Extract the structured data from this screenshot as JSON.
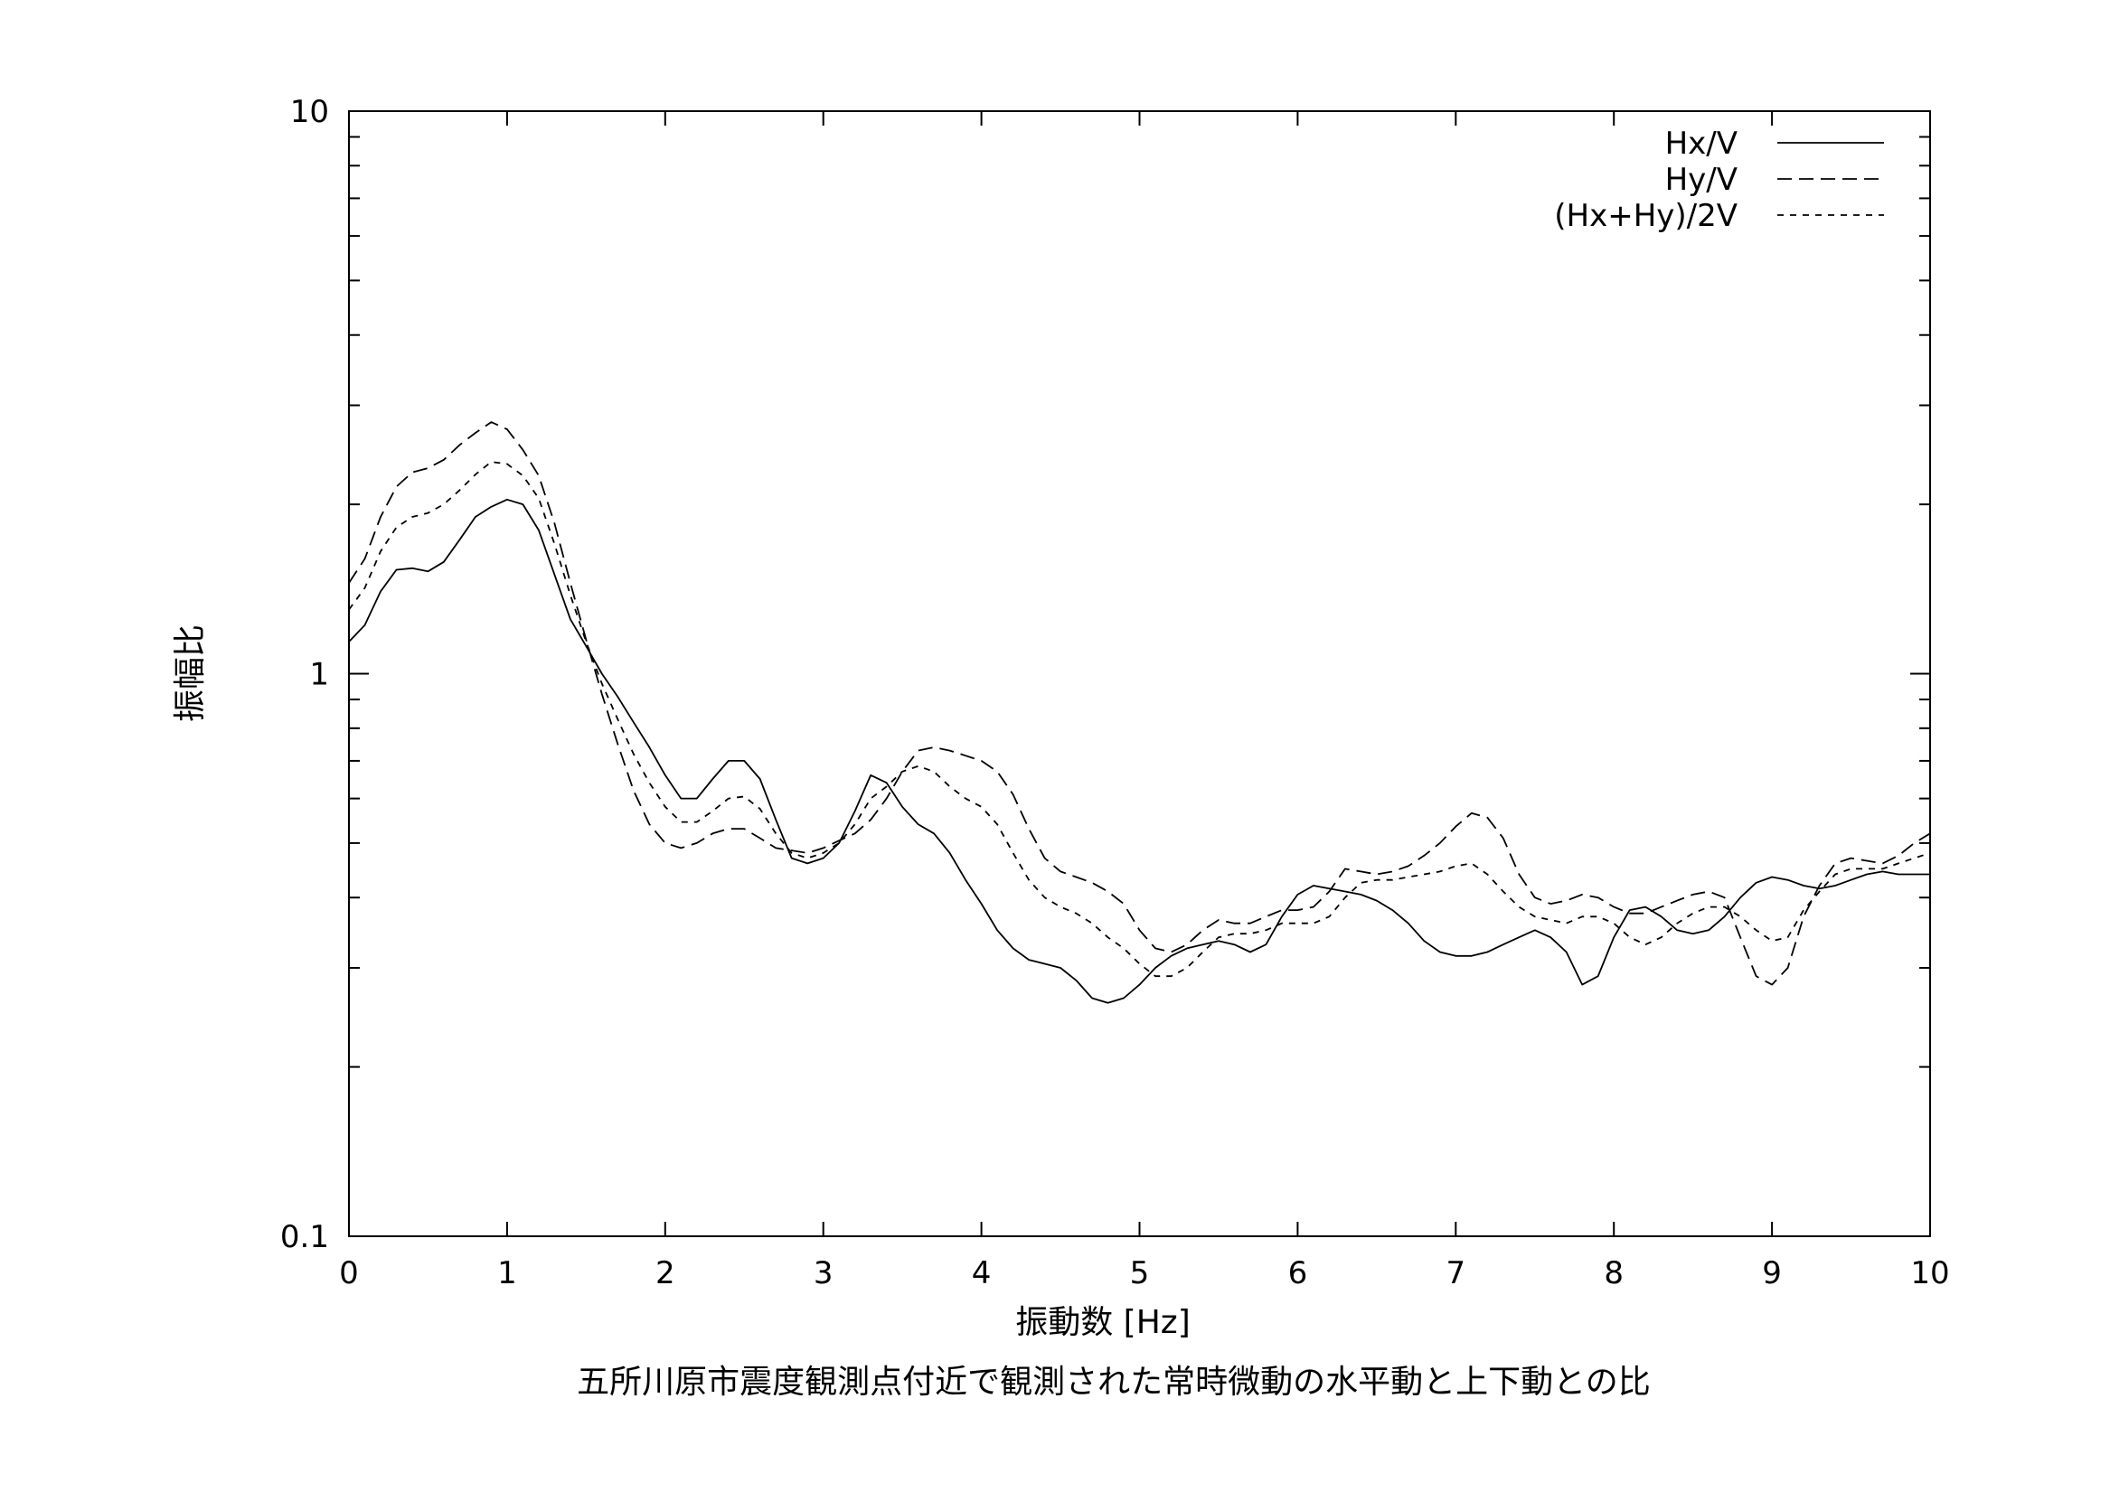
{
  "chart_data": {
    "type": "line",
    "title": "五所川原市震度観測点付近で観測された常時微動の水平動と上下動との比",
    "xlabel": "振動数 [Hz]",
    "ylabel": "振幅比",
    "xlim": [
      0,
      10
    ],
    "ylim": [
      0.1,
      10
    ],
    "yscale": "log",
    "grid": false,
    "legend_position": "top-right",
    "x_ticks": [
      "0",
      "1",
      "2",
      "3",
      "4",
      "5",
      "6",
      "7",
      "8",
      "9",
      "10"
    ],
    "y_ticks": [
      "0.1",
      "1",
      "10"
    ],
    "series": [
      {
        "name": "Hx/V",
        "style": "solid",
        "x": [
          0,
          0.1,
          0.2,
          0.3,
          0.4,
          0.5,
          0.6,
          0.7,
          0.8,
          0.9,
          1.0,
          1.1,
          1.2,
          1.3,
          1.4,
          1.5,
          1.6,
          1.7,
          1.8,
          1.9,
          2.0,
          2.1,
          2.2,
          2.3,
          2.4,
          2.5,
          2.6,
          2.7,
          2.8,
          2.9,
          3.0,
          3.1,
          3.2,
          3.3,
          3.4,
          3.5,
          3.6,
          3.7,
          3.8,
          3.9,
          4.0,
          4.1,
          4.2,
          4.3,
          4.4,
          4.5,
          4.6,
          4.7,
          4.8,
          4.9,
          5.0,
          5.1,
          5.2,
          5.3,
          5.4,
          5.5,
          5.6,
          5.7,
          5.8,
          5.9,
          6.0,
          6.1,
          6.2,
          6.3,
          6.4,
          6.5,
          6.6,
          6.7,
          6.8,
          6.9,
          7.0,
          7.1,
          7.2,
          7.3,
          7.4,
          7.5,
          7.6,
          7.7,
          7.8,
          7.9,
          8.0,
          8.1,
          8.2,
          8.3,
          8.4,
          8.5,
          8.6,
          8.7,
          8.8,
          8.9,
          9.0,
          9.1,
          9.2,
          9.3,
          9.4,
          9.5,
          9.6,
          9.7,
          9.8,
          9.9,
          10.0
        ],
        "values": [
          1.14,
          1.22,
          1.4,
          1.53,
          1.54,
          1.52,
          1.58,
          1.73,
          1.9,
          1.98,
          2.04,
          2.0,
          1.8,
          1.5,
          1.25,
          1.12,
          1.0,
          0.91,
          0.82,
          0.74,
          0.66,
          0.6,
          0.6,
          0.65,
          0.7,
          0.7,
          0.65,
          0.55,
          0.47,
          0.46,
          0.47,
          0.5,
          0.57,
          0.66,
          0.64,
          0.58,
          0.54,
          0.52,
          0.48,
          0.43,
          0.39,
          0.35,
          0.325,
          0.31,
          0.305,
          0.3,
          0.285,
          0.265,
          0.26,
          0.265,
          0.28,
          0.3,
          0.315,
          0.325,
          0.33,
          0.335,
          0.33,
          0.32,
          0.33,
          0.37,
          0.405,
          0.42,
          0.415,
          0.41,
          0.405,
          0.395,
          0.38,
          0.36,
          0.335,
          0.32,
          0.315,
          0.315,
          0.32,
          0.33,
          0.34,
          0.35,
          0.34,
          0.32,
          0.28,
          0.29,
          0.34,
          0.38,
          0.385,
          0.37,
          0.35,
          0.345,
          0.35,
          0.37,
          0.4,
          0.425,
          0.435,
          0.43,
          0.42,
          0.415,
          0.42,
          0.43,
          0.44,
          0.445,
          0.44,
          0.44,
          0.44
        ]
      },
      {
        "name": "Hy/V",
        "style": "long-dash",
        "x": [
          0,
          0.1,
          0.2,
          0.3,
          0.4,
          0.5,
          0.6,
          0.7,
          0.8,
          0.9,
          1.0,
          1.1,
          1.2,
          1.3,
          1.4,
          1.5,
          1.6,
          1.7,
          1.8,
          1.9,
          2.0,
          2.1,
          2.2,
          2.3,
          2.4,
          2.5,
          2.6,
          2.7,
          2.8,
          2.9,
          3.0,
          3.1,
          3.2,
          3.3,
          3.4,
          3.5,
          3.6,
          3.7,
          3.8,
          3.9,
          4.0,
          4.1,
          4.2,
          4.3,
          4.4,
          4.5,
          4.6,
          4.7,
          4.8,
          4.9,
          5.0,
          5.1,
          5.2,
          5.3,
          5.4,
          5.5,
          5.6,
          5.7,
          5.8,
          5.9,
          6.0,
          6.1,
          6.2,
          6.3,
          6.4,
          6.5,
          6.6,
          6.7,
          6.8,
          6.9,
          7.0,
          7.1,
          7.2,
          7.3,
          7.4,
          7.5,
          7.6,
          7.7,
          7.8,
          7.9,
          8.0,
          8.1,
          8.2,
          8.3,
          8.4,
          8.5,
          8.6,
          8.7,
          8.8,
          8.9,
          9.0,
          9.1,
          9.2,
          9.3,
          9.4,
          9.5,
          9.6,
          9.7,
          9.8,
          9.9,
          10.0
        ],
        "values": [
          1.45,
          1.6,
          1.9,
          2.15,
          2.28,
          2.32,
          2.4,
          2.55,
          2.68,
          2.8,
          2.72,
          2.5,
          2.25,
          1.85,
          1.45,
          1.15,
          0.92,
          0.75,
          0.62,
          0.54,
          0.5,
          0.49,
          0.5,
          0.52,
          0.53,
          0.53,
          0.51,
          0.49,
          0.485,
          0.48,
          0.49,
          0.505,
          0.52,
          0.55,
          0.6,
          0.67,
          0.73,
          0.74,
          0.73,
          0.715,
          0.7,
          0.67,
          0.61,
          0.53,
          0.47,
          0.445,
          0.435,
          0.425,
          0.41,
          0.39,
          0.35,
          0.325,
          0.32,
          0.33,
          0.35,
          0.365,
          0.36,
          0.36,
          0.37,
          0.38,
          0.38,
          0.385,
          0.41,
          0.45,
          0.445,
          0.44,
          0.445,
          0.455,
          0.475,
          0.5,
          0.535,
          0.565,
          0.555,
          0.51,
          0.44,
          0.4,
          0.39,
          0.395,
          0.405,
          0.4,
          0.385,
          0.375,
          0.375,
          0.385,
          0.395,
          0.405,
          0.41,
          0.4,
          0.34,
          0.29,
          0.28,
          0.3,
          0.37,
          0.42,
          0.46,
          0.47,
          0.465,
          0.46,
          0.475,
          0.5,
          0.52
        ]
      },
      {
        "name": "(Hx+Hy)/2V",
        "style": "short-dash",
        "x": [
          0,
          0.1,
          0.2,
          0.3,
          0.4,
          0.5,
          0.6,
          0.7,
          0.8,
          0.9,
          1.0,
          1.1,
          1.2,
          1.3,
          1.4,
          1.5,
          1.6,
          1.7,
          1.8,
          1.9,
          2.0,
          2.1,
          2.2,
          2.3,
          2.4,
          2.5,
          2.6,
          2.7,
          2.8,
          2.9,
          3.0,
          3.1,
          3.2,
          3.3,
          3.4,
          3.5,
          3.6,
          3.7,
          3.8,
          3.9,
          4.0,
          4.1,
          4.2,
          4.3,
          4.4,
          4.5,
          4.6,
          4.7,
          4.8,
          4.9,
          5.0,
          5.1,
          5.2,
          5.3,
          5.4,
          5.5,
          5.6,
          5.7,
          5.8,
          5.9,
          6.0,
          6.1,
          6.2,
          6.3,
          6.4,
          6.5,
          6.6,
          6.7,
          6.8,
          6.9,
          7.0,
          7.1,
          7.2,
          7.3,
          7.4,
          7.5,
          7.6,
          7.7,
          7.8,
          7.9,
          8.0,
          8.1,
          8.2,
          8.3,
          8.4,
          8.5,
          8.6,
          8.7,
          8.8,
          8.9,
          9.0,
          9.1,
          9.2,
          9.3,
          9.4,
          9.5,
          9.6,
          9.7,
          9.8,
          9.9,
          10.0
        ],
        "values": [
          1.3,
          1.42,
          1.65,
          1.82,
          1.9,
          1.93,
          2.0,
          2.12,
          2.26,
          2.38,
          2.36,
          2.25,
          2.05,
          1.7,
          1.38,
          1.14,
          0.96,
          0.83,
          0.72,
          0.64,
          0.58,
          0.545,
          0.545,
          0.57,
          0.6,
          0.605,
          0.575,
          0.52,
          0.48,
          0.47,
          0.48,
          0.5,
          0.54,
          0.6,
          0.63,
          0.67,
          0.685,
          0.67,
          0.63,
          0.6,
          0.58,
          0.54,
          0.48,
          0.43,
          0.4,
          0.385,
          0.375,
          0.36,
          0.34,
          0.325,
          0.305,
          0.29,
          0.29,
          0.3,
          0.32,
          0.34,
          0.345,
          0.345,
          0.35,
          0.36,
          0.36,
          0.36,
          0.37,
          0.4,
          0.425,
          0.43,
          0.43,
          0.435,
          0.44,
          0.445,
          0.455,
          0.46,
          0.44,
          0.41,
          0.385,
          0.37,
          0.365,
          0.36,
          0.37,
          0.37,
          0.36,
          0.34,
          0.33,
          0.34,
          0.36,
          0.375,
          0.385,
          0.385,
          0.37,
          0.35,
          0.335,
          0.34,
          0.38,
          0.41,
          0.44,
          0.45,
          0.45,
          0.45,
          0.46,
          0.47,
          0.48
        ]
      }
    ]
  }
}
